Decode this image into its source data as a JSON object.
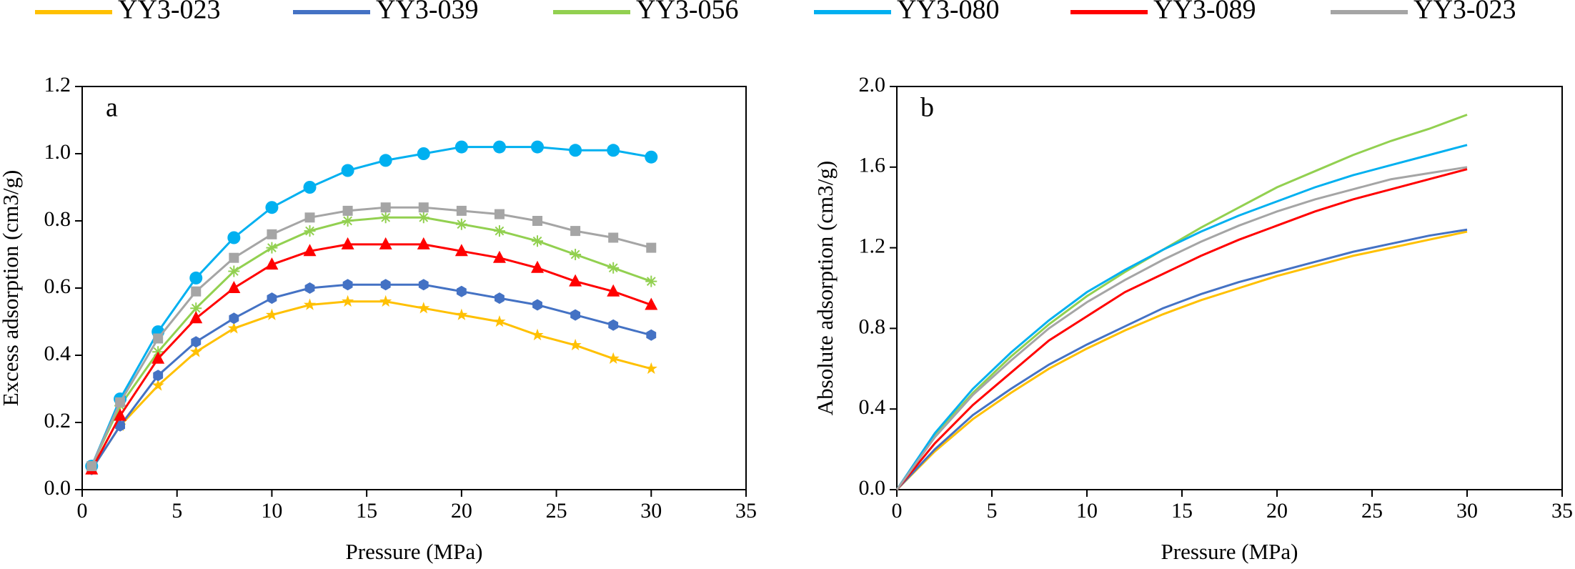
{
  "chart_data": [
    {
      "type": "line",
      "annotation": "a",
      "x_label": "Pressure (MPa)",
      "y_label": "Excess adsorption (cm3/g)",
      "x": [
        0.5,
        2,
        4,
        6,
        8,
        10,
        12,
        14,
        16,
        18,
        20,
        22,
        24,
        26,
        28,
        30
      ],
      "series": [
        {
          "name": "YY3-023",
          "color": "#ffc000",
          "marker": "star",
          "values": [
            0.06,
            0.19,
            0.31,
            0.41,
            0.48,
            0.52,
            0.55,
            0.56,
            0.56,
            0.54,
            0.52,
            0.5,
            0.46,
            0.43,
            0.39,
            0.36
          ]
        },
        {
          "name": "YY3-039",
          "color": "#4472c4",
          "marker": "hexagon",
          "values": [
            0.06,
            0.19,
            0.34,
            0.44,
            0.51,
            0.57,
            0.6,
            0.61,
            0.61,
            0.61,
            0.59,
            0.57,
            0.55,
            0.52,
            0.49,
            0.46
          ]
        },
        {
          "name": "YY3-056",
          "color": "#92d050",
          "marker": "asterisk",
          "values": [
            0.07,
            0.25,
            0.41,
            0.54,
            0.65,
            0.72,
            0.77,
            0.8,
            0.81,
            0.81,
            0.79,
            0.77,
            0.74,
            0.7,
            0.66,
            0.62
          ]
        },
        {
          "name": "YY3-080",
          "color": "#00b0f0",
          "marker": "circle",
          "values": [
            0.07,
            0.27,
            0.47,
            0.63,
            0.75,
            0.84,
            0.9,
            0.95,
            0.98,
            1.0,
            1.02,
            1.02,
            1.02,
            1.01,
            1.01,
            0.99
          ]
        },
        {
          "name": "YY3-089",
          "color": "#ff0000",
          "marker": "triangle",
          "values": [
            0.06,
            0.22,
            0.39,
            0.51,
            0.6,
            0.67,
            0.71,
            0.73,
            0.73,
            0.73,
            0.71,
            0.69,
            0.66,
            0.62,
            0.59,
            0.55
          ]
        },
        {
          "name": "YY3-023",
          "color": "#a5a5a5",
          "marker": "square",
          "values": [
            0.07,
            0.26,
            0.45,
            0.59,
            0.69,
            0.76,
            0.81,
            0.83,
            0.84,
            0.84,
            0.83,
            0.82,
            0.8,
            0.77,
            0.75,
            0.72
          ]
        }
      ],
      "xlim": [
        0,
        35
      ],
      "xticks": [
        0,
        5,
        10,
        15,
        20,
        25,
        30,
        35
      ],
      "ylim": [
        0,
        1.2
      ],
      "yticks": [
        {
          "value": 0,
          "label": "0.0"
        },
        0.2,
        0.4,
        0.6,
        0.8,
        {
          "value": 1,
          "label": "1.0"
        },
        1.2
      ]
    },
    {
      "type": "line",
      "annotation": "b",
      "x_label": "Pressure (MPa)",
      "y_label": "Absolute adsorption (cm3/g)",
      "x": [
        0,
        2,
        4,
        6,
        8,
        10,
        12,
        14,
        16,
        18,
        20,
        22,
        24,
        26,
        28,
        30
      ],
      "series": [
        {
          "color": "#ffc000",
          "values": [
            0,
            0.19,
            0.35,
            0.48,
            0.6,
            0.7,
            0.79,
            0.87,
            0.94,
            1.0,
            1.06,
            1.11,
            1.16,
            1.2,
            1.24,
            1.28
          ]
        },
        {
          "color": "#4472c4",
          "values": [
            0,
            0.2,
            0.37,
            0.5,
            0.62,
            0.72,
            0.81,
            0.9,
            0.97,
            1.03,
            1.08,
            1.13,
            1.18,
            1.22,
            1.26,
            1.29
          ]
        },
        {
          "color": "#92d050",
          "values": [
            0,
            0.27,
            0.48,
            0.66,
            0.82,
            0.96,
            1.08,
            1.19,
            1.3,
            1.4,
            1.5,
            1.58,
            1.66,
            1.73,
            1.79,
            1.86
          ]
        },
        {
          "color": "#00b0f0",
          "values": [
            0,
            0.28,
            0.5,
            0.68,
            0.84,
            0.98,
            1.09,
            1.19,
            1.28,
            1.36,
            1.43,
            1.5,
            1.56,
            1.61,
            1.66,
            1.71
          ]
        },
        {
          "color": "#ff0000",
          "values": [
            0,
            0.23,
            0.42,
            0.58,
            0.74,
            0.86,
            0.98,
            1.07,
            1.16,
            1.24,
            1.31,
            1.38,
            1.44,
            1.49,
            1.54,
            1.59
          ]
        },
        {
          "color": "#a5a5a5",
          "values": [
            0,
            0.26,
            0.47,
            0.64,
            0.8,
            0.93,
            1.04,
            1.14,
            1.23,
            1.31,
            1.38,
            1.44,
            1.49,
            1.54,
            1.57,
            1.6
          ]
        }
      ],
      "xlim": [
        0,
        35
      ],
      "xticks": [
        0,
        5,
        10,
        15,
        20,
        25,
        30,
        35
      ],
      "ylim": [
        0,
        2.0
      ],
      "yticks": [
        {
          "value": 0,
          "label": "0.0"
        },
        0.4,
        0.8,
        1.2,
        1.6,
        {
          "value": 2,
          "label": "2.0"
        }
      ]
    }
  ]
}
